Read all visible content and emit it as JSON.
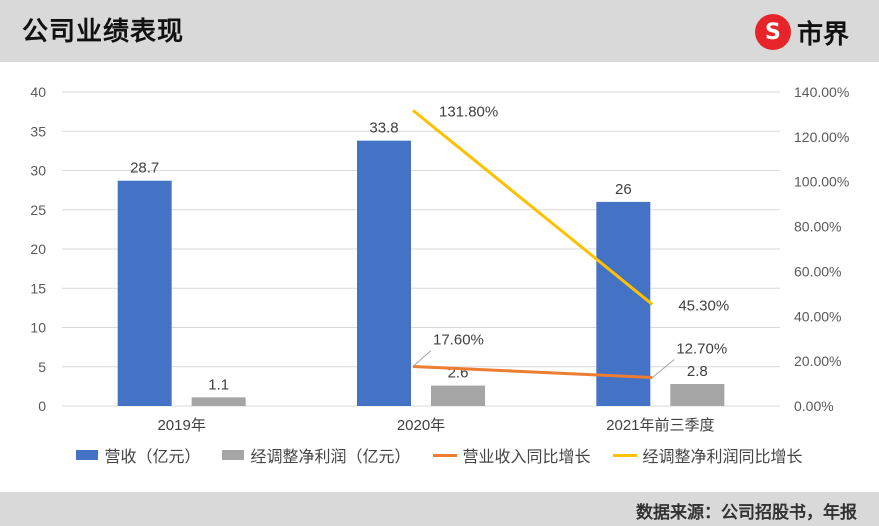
{
  "title": "公司业绩表现",
  "logo": {
    "mark": "S",
    "text": "市界"
  },
  "source": "数据来源：公司招股书，年报",
  "chart_data": {
    "type": "bar",
    "categories": [
      "2019年",
      "2020年",
      "2021年前三季度"
    ],
    "series": [
      {
        "name": "营收（亿元）",
        "kind": "bar",
        "axis": "left",
        "color": "#4472c4",
        "values": [
          28.7,
          33.8,
          26
        ],
        "labels": [
          "28.7",
          "33.8",
          "26"
        ]
      },
      {
        "name": "经调整净利润（亿元）",
        "kind": "bar",
        "axis": "left",
        "color": "#a5a5a5",
        "values": [
          1.1,
          2.6,
          2.8
        ],
        "labels": [
          "1.1",
          "2.6",
          "2.8"
        ]
      },
      {
        "name": "营业收入同比增长",
        "kind": "line",
        "axis": "right",
        "color": "#ed7d31",
        "values": [
          null,
          17.6,
          12.7
        ],
        "labels": [
          "",
          "17.60%",
          "12.70%"
        ]
      },
      {
        "name": "经调整净利润同比增长",
        "kind": "line",
        "axis": "right",
        "color": "#ffc000",
        "values": [
          null,
          131.8,
          45.3
        ],
        "labels": [
          "",
          "131.80%",
          "45.30%"
        ]
      }
    ],
    "left_axis": {
      "ylim": [
        0,
        40
      ],
      "ticks": [
        "0",
        "5",
        "10",
        "15",
        "20",
        "25",
        "30",
        "35",
        "40"
      ]
    },
    "right_axis": {
      "ylim": [
        0,
        140
      ],
      "ticks": [
        "0.00%",
        "20.00%",
        "40.00%",
        "60.00%",
        "80.00%",
        "100.00%",
        "120.00%",
        "140.00%"
      ]
    },
    "grid": true,
    "legend": "bottom"
  }
}
